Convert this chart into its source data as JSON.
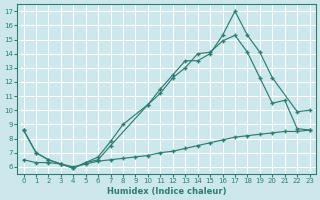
{
  "xlabel": "Humidex (Indice chaleur)",
  "background_color": "#cce8ec",
  "grid_color": "#b0d8de",
  "line_color": "#2e7d70",
  "ylim": [
    5.5,
    17.5
  ],
  "xlim": [
    -0.5,
    23.5
  ],
  "yticks": [
    6,
    7,
    8,
    9,
    10,
    11,
    12,
    13,
    14,
    15,
    16,
    17
  ],
  "xticks": [
    0,
    1,
    2,
    3,
    4,
    5,
    6,
    7,
    8,
    9,
    10,
    11,
    12,
    13,
    14,
    15,
    16,
    17,
    18,
    19,
    20,
    21,
    22,
    23
  ],
  "line1_x": [
    0,
    1,
    2,
    3,
    4,
    5,
    6,
    7,
    10,
    11,
    12,
    13,
    14,
    15,
    16,
    17,
    18,
    19,
    20,
    22,
    23
  ],
  "line1_y": [
    8.6,
    7.0,
    6.5,
    6.2,
    5.9,
    6.3,
    6.5,
    7.5,
    10.4,
    11.5,
    12.5,
    13.5,
    13.5,
    14.0,
    15.3,
    17.0,
    15.3,
    14.1,
    12.3,
    9.9,
    10.0
  ],
  "line2_x": [
    0,
    1,
    2,
    3,
    4,
    5,
    6,
    7,
    8,
    10,
    11,
    12,
    13,
    14,
    15,
    16,
    17,
    18,
    19,
    20,
    21,
    22,
    23
  ],
  "line2_y": [
    8.6,
    7.0,
    6.5,
    6.2,
    5.9,
    6.3,
    6.7,
    7.8,
    9.0,
    10.4,
    11.2,
    12.3,
    13.0,
    14.0,
    14.1,
    14.9,
    15.3,
    14.1,
    12.3,
    10.5,
    10.7,
    8.7,
    8.6
  ],
  "line3_x": [
    0,
    1,
    2,
    3,
    4,
    5,
    6,
    7,
    8,
    9,
    10,
    11,
    12,
    13,
    14,
    15,
    16,
    17,
    18,
    19,
    20,
    21,
    22,
    23
  ],
  "line3_y": [
    6.5,
    6.3,
    6.3,
    6.2,
    6.0,
    6.2,
    6.4,
    6.5,
    6.6,
    6.7,
    6.8,
    7.0,
    7.1,
    7.3,
    7.5,
    7.7,
    7.9,
    8.1,
    8.2,
    8.3,
    8.4,
    8.5,
    8.5,
    8.6
  ]
}
